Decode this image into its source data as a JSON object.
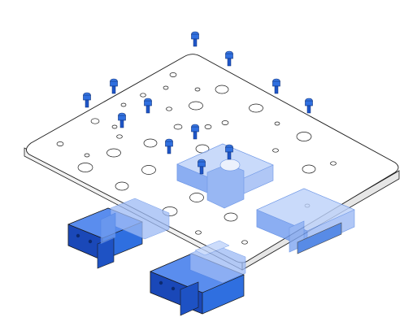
{
  "figure": {
    "caption": "",
    "description_parts": {
      "plate": "mounting-plate",
      "rails_blocks": "linear-rail-carriage-blocks",
      "screws": "socket-head-cap-screws"
    }
  },
  "colors": {
    "outline": "#1a1a1a",
    "plate_fill": "#ffffff",
    "part_blue": "#2f6fe0",
    "part_blue_dark": "#1a48b8",
    "part_blue_light": "#9dbaf5",
    "part_blue_ghost": "#c6d7fb"
  },
  "screw_count": 15,
  "carriage_count": 4
}
